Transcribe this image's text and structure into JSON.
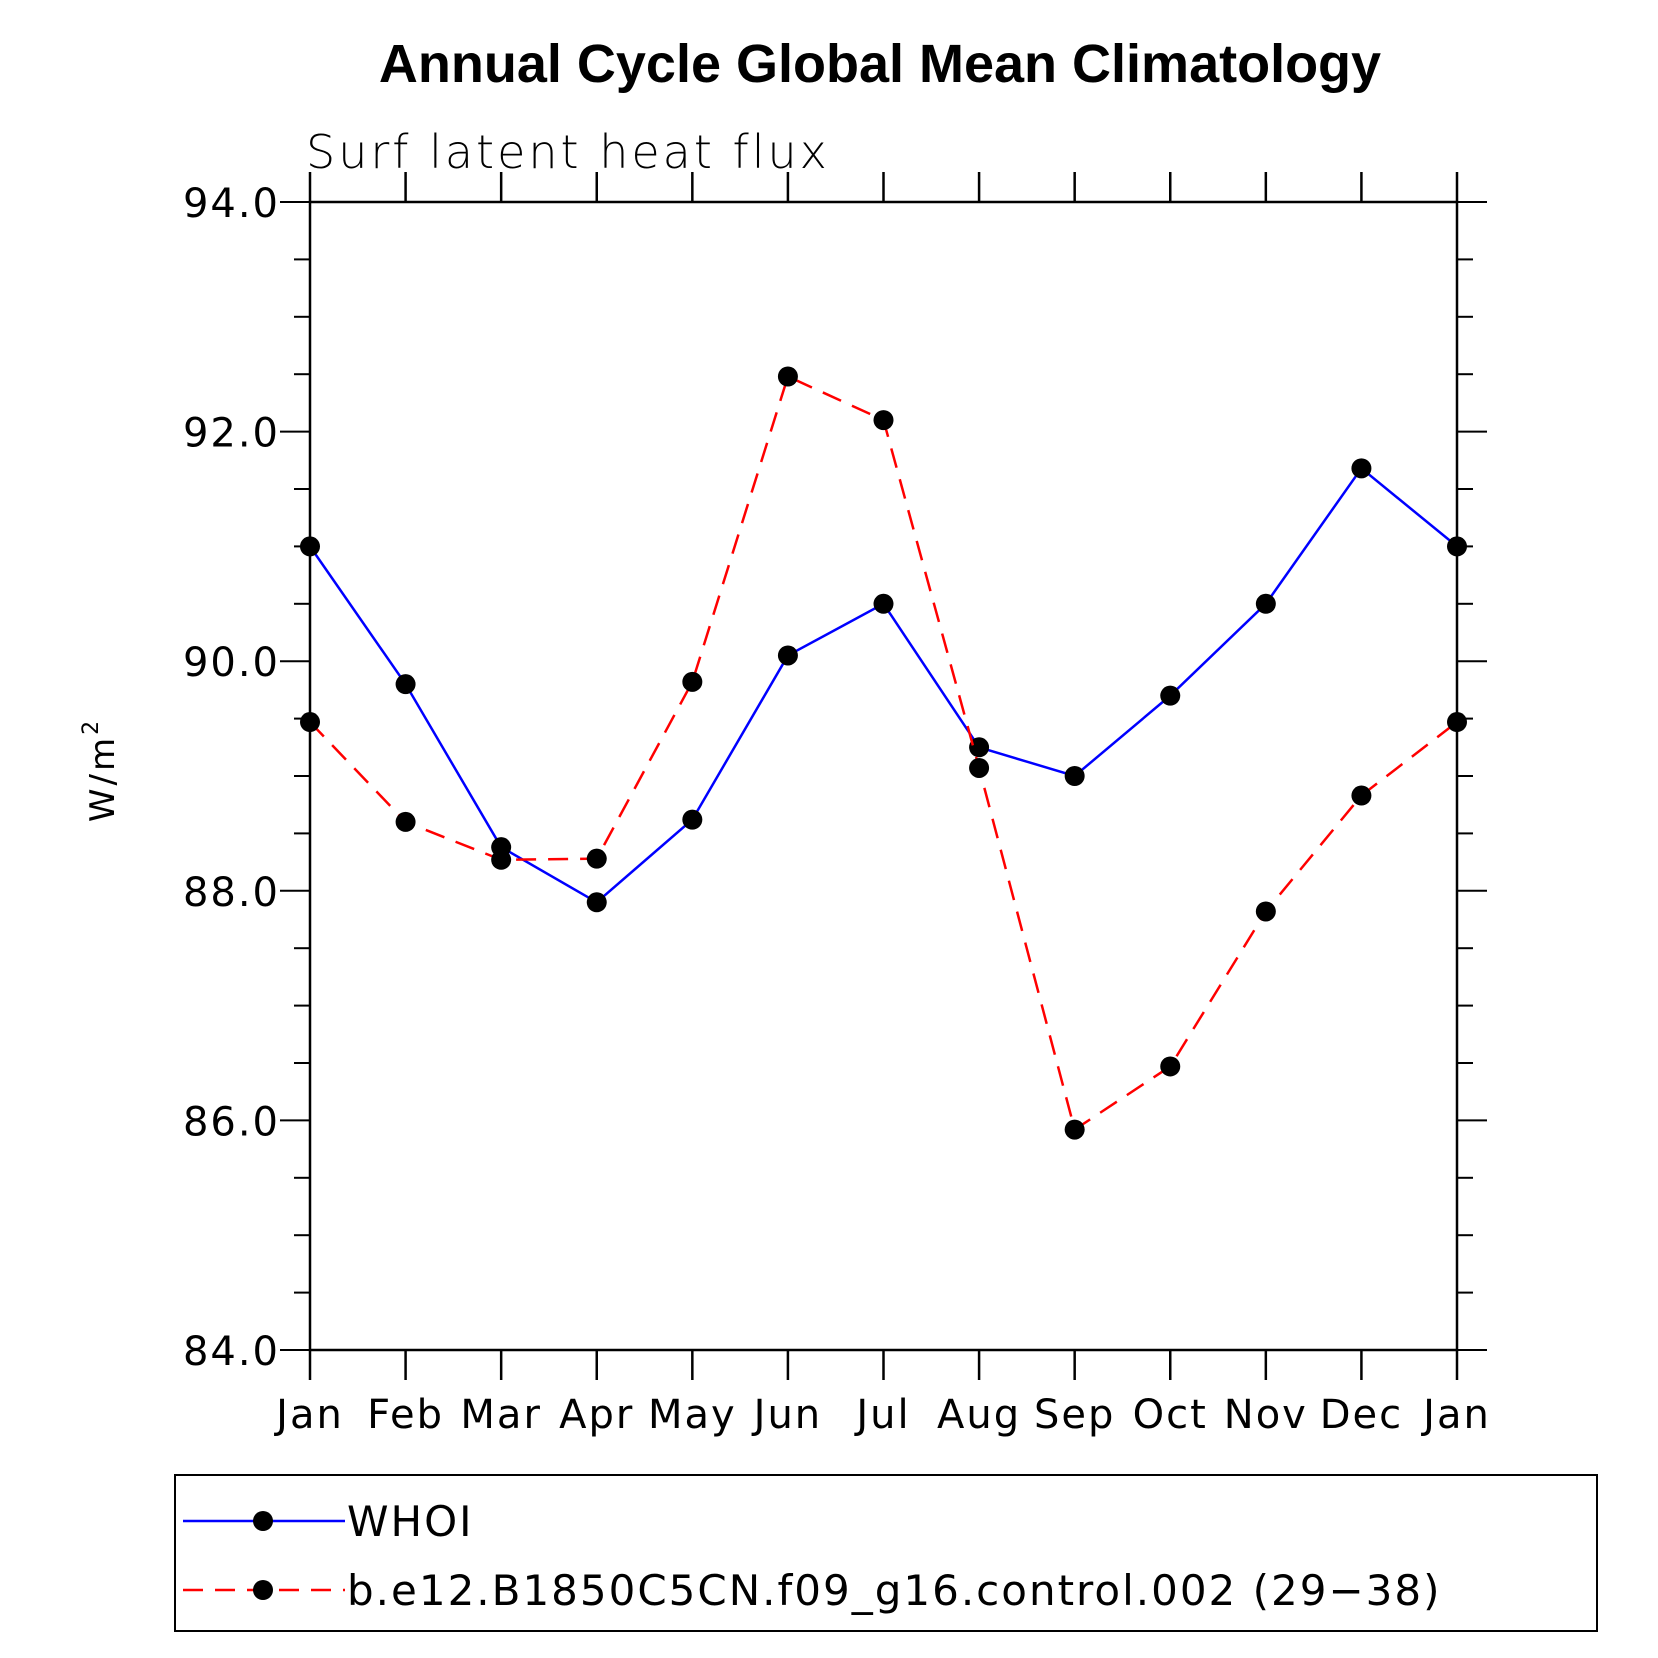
{
  "chart_data": {
    "type": "line",
    "title": "Annual Cycle Global Mean Climatology",
    "subtitle": "Surf latent heat flux",
    "ylabel_base": "W/m",
    "ylabel_sup": "2",
    "xlabel": "",
    "ylim": [
      84.0,
      94.0
    ],
    "y_major_ticks": [
      84.0,
      86.0,
      88.0,
      90.0,
      92.0,
      94.0
    ],
    "y_tick_labels": [
      "84.0",
      "86.0",
      "88.0",
      "90.0",
      "92.0",
      "94.0"
    ],
    "y_minor_step": 0.5,
    "categories": [
      "Jan",
      "Feb",
      "Mar",
      "Apr",
      "May",
      "Jun",
      "Jul",
      "Aug",
      "Sep",
      "Oct",
      "Nov",
      "Dec",
      "Jan"
    ],
    "series": [
      {
        "name": "WHOI",
        "color": "#0000ff",
        "dash": "solid",
        "values": [
          91.0,
          89.8,
          88.38,
          87.9,
          88.62,
          90.05,
          90.5,
          89.25,
          89.0,
          89.7,
          90.5,
          91.68,
          91.0
        ]
      },
      {
        "name": "b.e12.B1850C5CN.f09_g16.control.002 (29−38)",
        "color": "#ff0000",
        "dash": "dashed",
        "values": [
          89.47,
          88.6,
          88.27,
          88.28,
          89.82,
          92.48,
          92.1,
          89.07,
          85.92,
          86.47,
          87.82,
          88.83,
          89.47
        ]
      }
    ],
    "legend_position": "bottom"
  }
}
